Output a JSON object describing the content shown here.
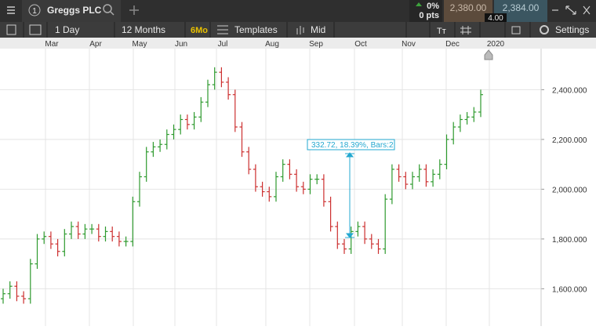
{
  "header": {
    "tab_number": "1",
    "instrument": "Greggs PLC",
    "change_pct": "0%",
    "change_pts": "0 pts",
    "sell": "2,380.00",
    "buy": "2,384.00",
    "spread": "4.00"
  },
  "toolbar": {
    "interval": "1 Day",
    "range": "12 Months",
    "period_badge": "6Mo",
    "templates": "Templates",
    "price_type": "Mid",
    "settings": "Settings"
  },
  "chart_data": {
    "type": "ohlc",
    "months": [
      "Mar",
      "Apr",
      "May",
      "Jun",
      "Jul",
      "Aug",
      "Sep",
      "Oct",
      "Nov",
      "Dec",
      "2020"
    ],
    "annotation": "332.72, 18.39%, Bars:2",
    "up_color": "#2e9a2e",
    "down_color": "#cc2f2f",
    "ylim": [
      1450,
      2565
    ],
    "yticks": [
      {
        "value": 1600,
        "label": "1,600.000"
      },
      {
        "value": 1800,
        "label": "1,800.000"
      },
      {
        "value": 2000,
        "label": "2,000.000"
      },
      {
        "value": 2200,
        "label": "2,200.000"
      },
      {
        "value": 2400,
        "label": "2,400.000"
      }
    ],
    "grid": true,
    "open": [
      1560,
      1580,
      1610,
      1570,
      1560,
      1700,
      1800,
      1810,
      1780,
      1750,
      1820,
      1850,
      1820,
      1840,
      1840,
      1810,
      1830,
      1810,
      1790,
      1790,
      1950,
      2050,
      2150,
      2170,
      2180,
      2220,
      2240,
      2280,
      2260,
      2290,
      2350,
      2420,
      2470,
      2430,
      2380,
      2250,
      2150,
      2080,
      2010,
      1990,
      1970,
      2050,
      2100,
      2060,
      2010,
      2000,
      2040,
      2040,
      1950,
      1850,
      1780,
      1760,
      1830,
      1850,
      1800,
      1780,
      1760,
      1960,
      2080,
      2050,
      2020,
      2050,
      2080,
      2030,
      2060,
      2100,
      2200,
      2250,
      2280,
      2290,
      2310
    ],
    "high": [
      1600,
      1630,
      1630,
      1590,
      1720,
      1820,
      1830,
      1830,
      1800,
      1840,
      1870,
      1870,
      1860,
      1860,
      1860,
      1850,
      1850,
      1830,
      1810,
      1970,
      2070,
      2170,
      2190,
      2200,
      2240,
      2260,
      2300,
      2300,
      2310,
      2370,
      2440,
      2490,
      2490,
      2450,
      2400,
      2270,
      2170,
      2100,
      2030,
      2010,
      2070,
      2120,
      2120,
      2080,
      2030,
      2060,
      2060,
      2060,
      1970,
      1870,
      1800,
      1850,
      1870,
      1870,
      1820,
      1800,
      1980,
      2100,
      2100,
      2070,
      2070,
      2100,
      2100,
      2080,
      2120,
      2220,
      2270,
      2300,
      2310,
      2330,
      2400
    ],
    "low": [
      1540,
      1560,
      1550,
      1540,
      1540,
      1680,
      1780,
      1760,
      1730,
      1730,
      1800,
      1800,
      1800,
      1820,
      1790,
      1790,
      1790,
      1770,
      1770,
      1770,
      1930,
      2030,
      2130,
      2150,
      2160,
      2200,
      2220,
      2240,
      2240,
      2270,
      2330,
      2400,
      2410,
      2360,
      2230,
      2130,
      2060,
      1990,
      1970,
      1950,
      1950,
      2030,
      2040,
      1990,
      1980,
      1980,
      2020,
      1930,
      1830,
      1760,
      1740,
      1740,
      1810,
      1780,
      1760,
      1740,
      1740,
      1940,
      2030,
      2000,
      2000,
      2030,
      2010,
      2010,
      2040,
      2080,
      2180,
      2230,
      2260,
      2270,
      2290
    ],
    "close": [
      1580,
      1610,
      1570,
      1560,
      1700,
      1800,
      1810,
      1780,
      1750,
      1820,
      1850,
      1820,
      1840,
      1840,
      1810,
      1830,
      1810,
      1790,
      1790,
      1950,
      2050,
      2150,
      2170,
      2180,
      2220,
      2240,
      2280,
      2260,
      2290,
      2350,
      2420,
      2470,
      2430,
      2380,
      2250,
      2150,
      2080,
      2010,
      1990,
      1970,
      2050,
      2100,
      2060,
      2010,
      2000,
      2040,
      2040,
      1950,
      1850,
      1780,
      1760,
      1830,
      1850,
      1800,
      1780,
      1760,
      1960,
      2080,
      2050,
      2020,
      2050,
      2080,
      2030,
      2060,
      2100,
      2200,
      2250,
      2280,
      2290,
      2310,
      2380
    ]
  }
}
